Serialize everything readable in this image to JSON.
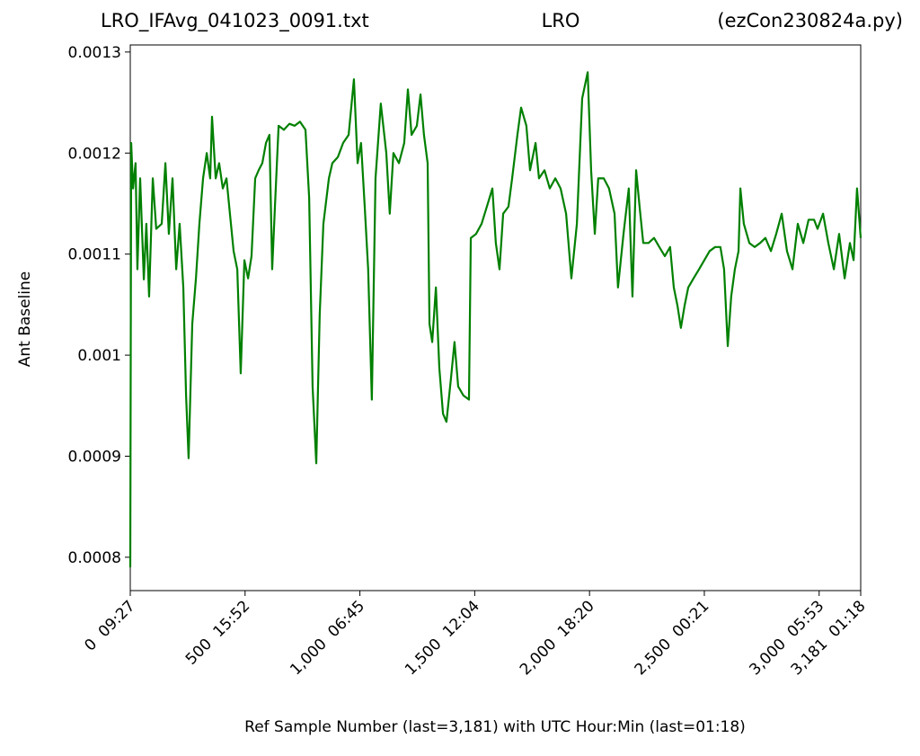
{
  "chart_data": {
    "type": "line",
    "title": "LRO_IFAvg_041023_0091.txt",
    "subtitle": "LRO",
    "annotation": "(ezCon230824a.py)",
    "x_label": "Ref Sample Number (last=3,181) with UTC Hour:Min (last=01:18)",
    "y_label": "Ant Baseline",
    "xlim": [
      0,
      3181
    ],
    "ylim": [
      0.000767,
      0.001307
    ],
    "xticks": [
      {
        "value": 0,
        "label": "0  09:27"
      },
      {
        "value": 500,
        "label": "500  15:52"
      },
      {
        "value": 1000,
        "label": "1,000  06:45"
      },
      {
        "value": 1500,
        "label": "1,500  12:04"
      },
      {
        "value": 2000,
        "label": "2,000  18:20"
      },
      {
        "value": 2500,
        "label": "2,500  00:21"
      },
      {
        "value": 3000,
        "label": "3,000  05:53"
      },
      {
        "value": 3181,
        "label": "3,181  01:18"
      }
    ],
    "yticks": [
      0.0008,
      0.0009,
      0.001,
      0.0011,
      0.0012,
      0.0013
    ],
    "grid": false,
    "series": [
      {
        "color": "#008000",
        "x": [
          0,
          4,
          12,
          23,
          31,
          43,
          59,
          70,
          82,
          98,
          113,
          137,
          153,
          168,
          184,
          200,
          215,
          231,
          243,
          254,
          270,
          286,
          301,
          317,
          333,
          348,
          356,
          372,
          387,
          403,
          419,
          434,
          450,
          466,
          481,
          497,
          513,
          528,
          544,
          559,
          575,
          591,
          606,
          618,
          630,
          646,
          669,
          693,
          716,
          739,
          763,
          779,
          794,
          810,
          825,
          841,
          865,
          880,
          904,
          927,
          951,
          974,
          990,
          1005,
          1021,
          1036,
          1052,
          1068,
          1091,
          1115,
          1130,
          1146,
          1170,
          1193,
          1209,
          1225,
          1248,
          1264,
          1279,
          1295,
          1303,
          1315,
          1331,
          1346,
          1362,
          1377,
          1397,
          1412,
          1428,
          1451,
          1475,
          1483,
          1506,
          1530,
          1553,
          1577,
          1592,
          1608,
          1624,
          1647,
          1663,
          1686,
          1702,
          1725,
          1741,
          1765,
          1780,
          1804,
          1827,
          1851,
          1874,
          1898,
          1921,
          1945,
          1968,
          1992,
          2007,
          2023,
          2038,
          2062,
          2085,
          2109,
          2124,
          2148,
          2171,
          2187,
          2203,
          2218,
          2234,
          2257,
          2281,
          2304,
          2328,
          2351,
          2367,
          2383,
          2398,
          2414,
          2430,
          2453,
          2477,
          2500,
          2523,
          2547,
          2570,
          2586,
          2602,
          2617,
          2633,
          2649,
          2657,
          2672,
          2696,
          2719,
          2743,
          2766,
          2790,
          2813,
          2837,
          2860,
          2884,
          2907,
          2931,
          2954,
          2978,
          2993,
          3017,
          3040,
          3064,
          3087,
          3111,
          3134,
          3150,
          3165,
          3181
        ],
        "values": [
          0.00079,
          0.00121,
          0.001165,
          0.00119,
          0.001085,
          0.001175,
          0.001075,
          0.00113,
          0.001058,
          0.001175,
          0.001125,
          0.00113,
          0.00119,
          0.00112,
          0.001175,
          0.001085,
          0.00113,
          0.001067,
          0.00096,
          0.000898,
          0.001031,
          0.001076,
          0.00113,
          0.001175,
          0.0012,
          0.001175,
          0.001236,
          0.001175,
          0.00119,
          0.001165,
          0.001175,
          0.00114,
          0.001103,
          0.001085,
          0.000982,
          0.001094,
          0.001076,
          0.001098,
          0.001175,
          0.001183,
          0.00119,
          0.00121,
          0.001218,
          0.001085,
          0.001147,
          0.001227,
          0.001223,
          0.001229,
          0.001227,
          0.001231,
          0.001223,
          0.001156,
          0.000969,
          0.000893,
          0.00104,
          0.00113,
          0.001175,
          0.00119,
          0.001196,
          0.00121,
          0.001218,
          0.001273,
          0.00119,
          0.00121,
          0.001147,
          0.001085,
          0.000956,
          0.001175,
          0.001249,
          0.0012,
          0.00114,
          0.0012,
          0.00119,
          0.00121,
          0.001263,
          0.001218,
          0.001227,
          0.001258,
          0.001218,
          0.00119,
          0.001031,
          0.001013,
          0.001067,
          0.000987,
          0.000942,
          0.000934,
          0.000978,
          0.001013,
          0.000969,
          0.00096,
          0.000956,
          0.001116,
          0.00112,
          0.00113,
          0.001147,
          0.001165,
          0.001111,
          0.001085,
          0.00114,
          0.001147,
          0.001175,
          0.001218,
          0.001245,
          0.001227,
          0.001183,
          0.00121,
          0.001175,
          0.001183,
          0.001165,
          0.001175,
          0.001165,
          0.00114,
          0.001076,
          0.00113,
          0.001254,
          0.00128,
          0.001183,
          0.00112,
          0.001175,
          0.001175,
          0.001165,
          0.00114,
          0.001067,
          0.00112,
          0.001165,
          0.001058,
          0.001183,
          0.001147,
          0.001111,
          0.001111,
          0.001116,
          0.001107,
          0.001098,
          0.001107,
          0.001067,
          0.001049,
          0.001027,
          0.001049,
          0.001067,
          0.001076,
          0.001085,
          0.001094,
          0.001103,
          0.001107,
          0.001107,
          0.001085,
          0.001009,
          0.001058,
          0.001085,
          0.001103,
          0.001165,
          0.00113,
          0.001111,
          0.001107,
          0.001111,
          0.001116,
          0.001103,
          0.00112,
          0.00114,
          0.001103,
          0.001085,
          0.00113,
          0.001111,
          0.001134,
          0.001134,
          0.001125,
          0.00114,
          0.001111,
          0.001085,
          0.00112,
          0.001076,
          0.001111,
          0.001094,
          0.001165,
          0.001116
        ]
      }
    ]
  }
}
